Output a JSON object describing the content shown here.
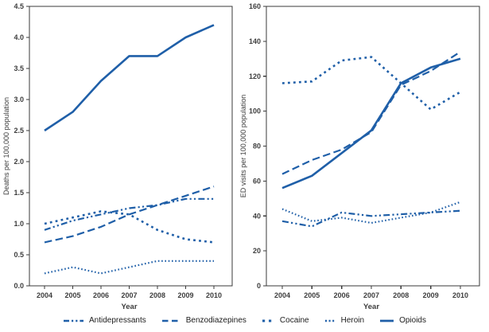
{
  "figure": {
    "accent_color": "#1f5fa8",
    "axis_color": "#3a3a3a",
    "tick_text_color": "#3d3d3d",
    "legend": {
      "items": [
        {
          "key": "antidepressants",
          "label": "Antidepressants"
        },
        {
          "key": "benzodiazepines",
          "label": "Benzodiazepines"
        },
        {
          "key": "cocaine",
          "label": "Cocaine"
        },
        {
          "key": "heroin",
          "label": "Heroin"
        },
        {
          "key": "opioids",
          "label": "Opioids"
        }
      ]
    }
  },
  "chart_data": [
    {
      "type": "line",
      "title": "",
      "xlabel": "Year",
      "ylabel": "Deaths per 100,000 population",
      "x": [
        2004,
        2005,
        2006,
        2007,
        2008,
        2009,
        2010
      ],
      "xticks": [
        "2004",
        "2005",
        "2006",
        "2007",
        "2008",
        "2009",
        "2010"
      ],
      "ylim": [
        0,
        4.5
      ],
      "yticks": [
        "0.0",
        "0.5",
        "1.0",
        "1.5",
        "2.0",
        "2.5",
        "3.0",
        "3.5",
        "4.0",
        "4.5"
      ],
      "grid": false,
      "legend_position": "below-figure",
      "series": [
        {
          "key": "antidepressants",
          "name": "Antidepressants",
          "values": [
            0.9,
            1.05,
            1.15,
            1.25,
            1.3,
            1.4,
            1.4
          ]
        },
        {
          "key": "benzodiazepines",
          "name": "Benzodiazepines",
          "values": [
            0.7,
            0.8,
            0.95,
            1.15,
            1.3,
            1.45,
            1.6
          ]
        },
        {
          "key": "cocaine",
          "name": "Cocaine",
          "values": [
            1.0,
            1.1,
            1.2,
            1.15,
            0.9,
            0.75,
            0.7
          ]
        },
        {
          "key": "heroin",
          "name": "Heroin",
          "values": [
            0.2,
            0.3,
            0.2,
            0.3,
            0.4,
            0.4,
            0.4
          ]
        },
        {
          "key": "opioids",
          "name": "Opioids",
          "values": [
            2.5,
            2.8,
            3.3,
            3.7,
            3.7,
            4.0,
            4.2
          ]
        }
      ]
    },
    {
      "type": "line",
      "title": "",
      "xlabel": "Year",
      "ylabel": "ED visits per 100,000 population",
      "x": [
        2004,
        2005,
        2006,
        2007,
        2008,
        2009,
        2010
      ],
      "xticks": [
        "2004",
        "2005",
        "2006",
        "2007",
        "2008",
        "2009",
        "2010"
      ],
      "ylim": [
        0,
        160
      ],
      "yticks": [
        "0",
        "20",
        "40",
        "60",
        "80",
        "100",
        "120",
        "140",
        "160"
      ],
      "grid": false,
      "legend_position": "below-figure",
      "series": [
        {
          "key": "antidepressants",
          "name": "Antidepressants",
          "values": [
            37,
            34,
            42,
            40,
            41,
            42,
            43
          ]
        },
        {
          "key": "benzodiazepines",
          "name": "Benzodiazepines",
          "values": [
            64,
            72,
            78,
            88,
            115,
            123,
            134
          ]
        },
        {
          "key": "cocaine",
          "name": "Cocaine",
          "values": [
            116,
            117,
            129,
            131,
            116,
            101,
            111
          ]
        },
        {
          "key": "heroin",
          "name": "Heroin",
          "values": [
            44,
            37,
            39,
            36,
            39,
            42,
            48
          ]
        },
        {
          "key": "opioids",
          "name": "Opioids",
          "values": [
            56,
            63,
            76,
            89,
            116,
            125,
            130
          ]
        }
      ]
    }
  ]
}
